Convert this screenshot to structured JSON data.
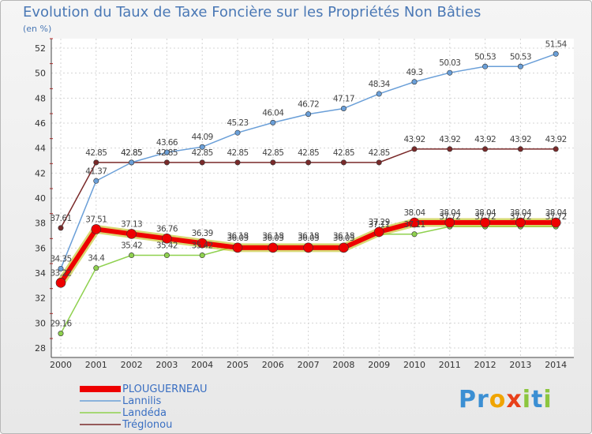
{
  "title": "Evolution du Taux de Taxe Foncière sur les Propriétés Non Bâties",
  "unit": "(en %)",
  "logo": {
    "letters": [
      "P",
      "r",
      "o",
      "x",
      "i",
      "t",
      "i"
    ],
    "colors": [
      "#3b8fd3",
      "#3b8fd3",
      "#f0a400",
      "#e8401a",
      "#8cc63f",
      "#3b8fd3",
      "#8cc63f"
    ]
  },
  "chart_data": {
    "type": "line",
    "title": "Evolution du Taux de Taxe Foncière sur les Propriétés Non Bâties",
    "ylabel": "(en %)",
    "xlabel": "",
    "ylim": [
      28,
      52
    ],
    "yticks": [
      28,
      30,
      32,
      34,
      36,
      38,
      40,
      42,
      44,
      46,
      48,
      50,
      52
    ],
    "categories": [
      "2000",
      "2001",
      "2002",
      "2003",
      "2004",
      "2005",
      "2006",
      "2007",
      "2008",
      "2009",
      "2010",
      "2011",
      "2012",
      "2013",
      "2014"
    ],
    "grid": true,
    "legend_position": "bottom-left",
    "series": [
      {
        "name": "Tréglonou",
        "color": "#7a2a2a",
        "values": [
          37.61,
          42.85,
          42.85,
          42.85,
          42.85,
          42.85,
          42.85,
          42.85,
          42.85,
          42.85,
          43.92,
          43.92,
          43.92,
          43.92,
          43.92
        ],
        "labels": [
          "37.61",
          "42.85",
          "42.85",
          "42.85",
          "42.85",
          "42.85",
          "42.85",
          "42.85",
          "42.85",
          "42.85",
          "43.92",
          "43.92",
          "43.92",
          "43.92",
          "43.92"
        ]
      },
      {
        "name": "Landéda",
        "color": "#8fd14f",
        "values": [
          29.16,
          34.4,
          35.42,
          35.42,
          35.42,
          36.18,
          36.18,
          36.18,
          36.18,
          37.11,
          37.11,
          37.72,
          37.72,
          37.72,
          37.72
        ],
        "labels": [
          "29.16",
          "34.4",
          "35.42",
          "35.42",
          "35.42",
          "36.18",
          "36.18",
          "36.18",
          "36.18",
          "37.11",
          "37.11",
          "37.72",
          "37.72",
          "37.72",
          "37.72"
        ]
      },
      {
        "name": "Lannilis",
        "color": "#6a9fd8",
        "values": [
          34.35,
          41.37,
          42.85,
          43.66,
          44.09,
          45.23,
          46.04,
          46.72,
          47.17,
          48.34,
          49.3,
          50.03,
          50.53,
          50.53,
          51.54
        ],
        "labels": [
          "34.35",
          "41.37",
          "42.85",
          "43.66",
          "44.09",
          "45.23",
          "46.04",
          "46.72",
          "47.17",
          "48.34",
          "49.3",
          "50.03",
          "50.53",
          "50.53",
          "51.54"
        ]
      },
      {
        "name": "PLOUGUERNEAU",
        "color": "#ee0000",
        "values": [
          33.22,
          37.51,
          37.13,
          36.76,
          36.39,
          36.03,
          36.03,
          36.03,
          36.03,
          37.29,
          38.04,
          38.04,
          38.04,
          38.04,
          38.04
        ],
        "labels": [
          "33.22",
          "37.51",
          "37.13",
          "36.76",
          "36.39",
          "36.03",
          "36.03",
          "36.03",
          "36.03",
          "37.29",
          "38.04",
          "38.04",
          "38.04",
          "38.04",
          "38.04"
        ]
      }
    ],
    "legend": [
      "PLOUGUERNEAU",
      "Lannilis",
      "Landéda",
      "Tréglonou"
    ]
  }
}
